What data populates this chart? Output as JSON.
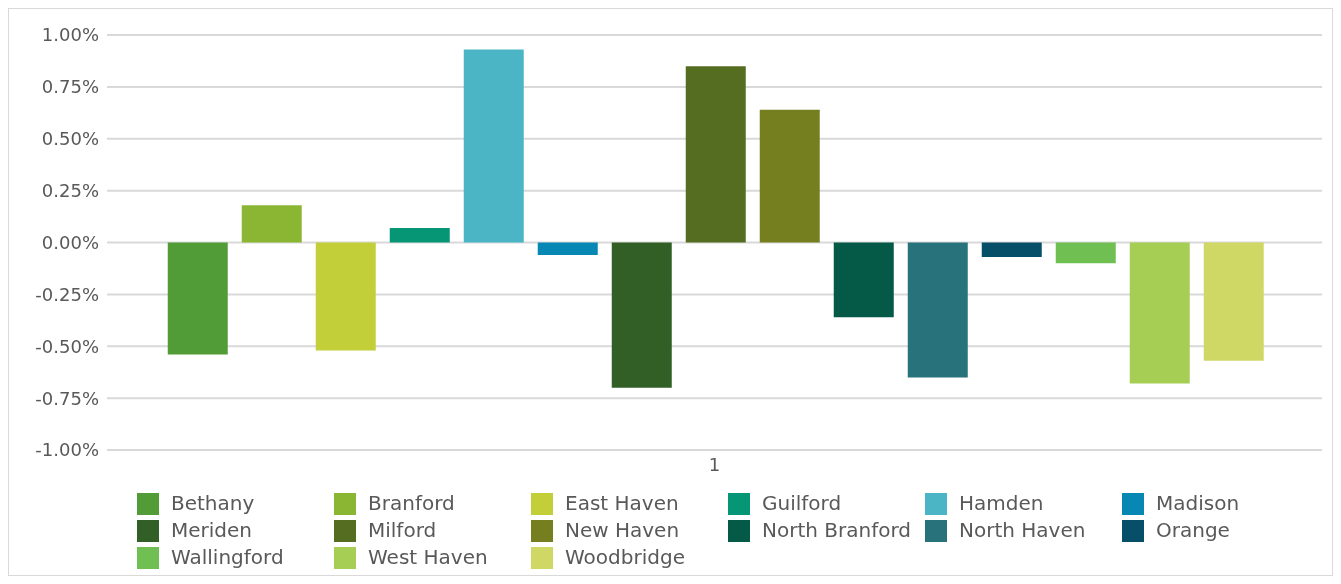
{
  "chart_data": {
    "type": "bar",
    "categories": [
      "1"
    ],
    "series": [
      {
        "name": "Bethany",
        "color": "#529c38",
        "values": [
          -0.54
        ]
      },
      {
        "name": "Branford",
        "color": "#8ab633",
        "values": [
          0.18
        ]
      },
      {
        "name": "East Haven",
        "color": "#c2cf38",
        "values": [
          -0.52
        ]
      },
      {
        "name": "Guilford",
        "color": "#079675",
        "values": [
          0.07
        ]
      },
      {
        "name": "Hamden",
        "color": "#4bb4c5",
        "values": [
          0.93
        ]
      },
      {
        "name": "Madison",
        "color": "#0787b3",
        "values": [
          -0.06
        ]
      },
      {
        "name": "Meriden",
        "color": "#315f25",
        "values": [
          -0.7
        ]
      },
      {
        "name": "Milford",
        "color": "#546d20",
        "values": [
          0.85
        ]
      },
      {
        "name": "New Haven",
        "color": "#767f1f",
        "values": [
          0.64
        ]
      },
      {
        "name": "North Branford",
        "color": "#045a47",
        "values": [
          -0.36
        ]
      },
      {
        "name": "North Haven",
        "color": "#27727b",
        "values": [
          -0.65
        ]
      },
      {
        "name": "Orange",
        "color": "#074f69",
        "values": [
          -0.07
        ]
      },
      {
        "name": "Wallingford",
        "color": "#6fbf53",
        "values": [
          -0.1
        ]
      },
      {
        "name": "West Haven",
        "color": "#a6ce55",
        "values": [
          -0.68
        ]
      },
      {
        "name": "Woodbridge",
        "color": "#cfd864",
        "values": [
          -0.57
        ]
      }
    ],
    "ylim": [
      -1,
      1
    ],
    "yticks": [
      {
        "value": -1,
        "label": "-1.00%"
      },
      {
        "value": -0.75,
        "label": "-0.75%"
      },
      {
        "value": -0.5,
        "label": "-0.50%"
      },
      {
        "value": -0.25,
        "label": "-0.25%"
      },
      {
        "value": 0,
        "label": "0.00%"
      },
      {
        "value": 0.25,
        "label": "0.25%"
      },
      {
        "value": 0.5,
        "label": "0.50%"
      },
      {
        "value": 0.75,
        "label": "0.75%"
      },
      {
        "value": 1,
        "label": "1.00%"
      }
    ],
    "grid": "y",
    "legend": "bottom"
  }
}
